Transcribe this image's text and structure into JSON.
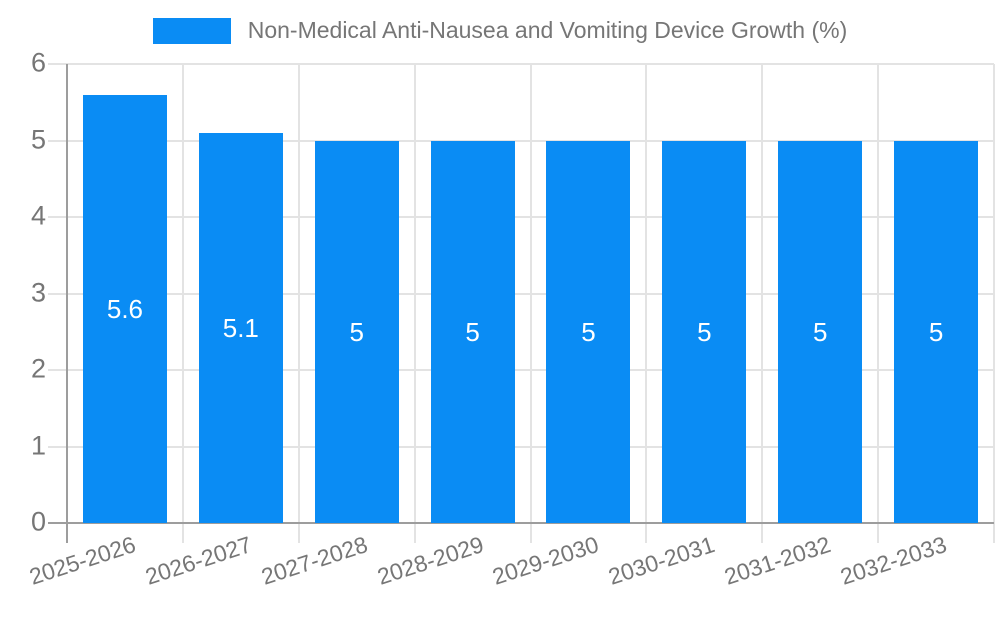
{
  "chart_data": {
    "type": "bar",
    "title": "Non-Medical Anti-Nausea and Vomiting Device Growth (%)",
    "legend_position": "top-center",
    "categories": [
      "2025-2026",
      "2026-2027",
      "2027-2028",
      "2028-2029",
      "2029-2030",
      "2030-2031",
      "2031-2032",
      "2032-2033"
    ],
    "series": [
      {
        "name": "Non-Medical Anti-Nausea and Vomiting Device Growth (%)",
        "values": [
          5.6,
          5.1,
          5,
          5,
          5,
          5,
          5,
          5
        ]
      }
    ],
    "xlabel": "",
    "ylabel": "",
    "ylim": [
      0,
      6
    ],
    "yticks": [
      0,
      1,
      2,
      3,
      4,
      5,
      6
    ],
    "grid": "horizontal-and-vertical",
    "value_labels_shown": true,
    "x_label_rotation_deg": -18,
    "colors": {
      "bar": "#0a8cf4",
      "grid": "#e3e3e3",
      "axis": "#9d9d9d",
      "text": "#767676",
      "value_label": "#ffffff",
      "background": "#ffffff"
    }
  }
}
